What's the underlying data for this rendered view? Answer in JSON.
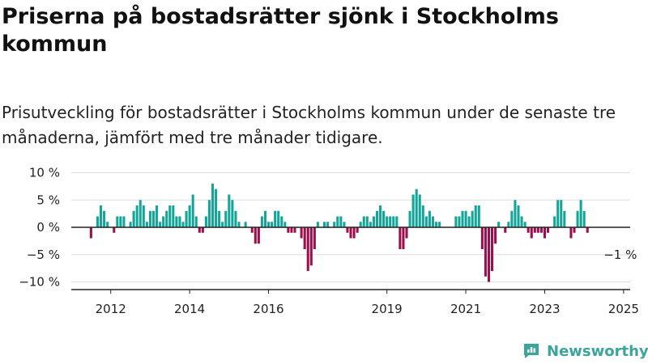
{
  "title": "Priserna på bostadsrätter sjönk i Stockholms kommun",
  "subtitle": "Prisutveckling för bostadsrätter i Stockholms kommun under de senaste tre månaderna, jämfört med tre månader tidigare.",
  "brand": {
    "name": "Newsworthy"
  },
  "colors": {
    "positive": "#13a597",
    "negative": "#9b0f4d",
    "grid": "#dddddd",
    "axis": "#222222"
  },
  "chart_data": {
    "type": "bar",
    "x_start": "2011-01",
    "x_end": "2025-03",
    "unit": "%",
    "ylim": [
      -11,
      11
    ],
    "y_ticks": [
      10,
      5,
      0,
      -5,
      -10
    ],
    "y_tick_labels": [
      "10 %",
      "5 %",
      "0 %",
      "−5 %",
      "−10 %"
    ],
    "x_ticks": [
      "2012",
      "2014",
      "2016",
      "2019",
      "2021",
      "2023",
      "2025"
    ],
    "grid": true,
    "annotation": {
      "text": "−1 %",
      "month": "2024-12",
      "value": -1
    },
    "series": [
      {
        "start_month": "2011-07",
        "values": [
          -2,
          0,
          2,
          4,
          3,
          1,
          0,
          -1,
          2,
          2,
          2,
          0,
          1,
          3,
          4,
          5,
          4,
          1,
          3,
          3,
          4,
          1,
          2,
          3,
          4,
          4,
          2,
          2,
          1,
          3,
          4,
          6,
          2,
          -1,
          -1,
          2,
          5,
          8,
          7,
          3,
          1,
          3,
          6,
          5,
          3,
          1,
          0,
          1,
          0,
          -1,
          -3,
          -3,
          2,
          3,
          1,
          1,
          3,
          3,
          2,
          1,
          -1,
          -1,
          -1,
          0,
          -2,
          -4,
          -8,
          -7,
          -4,
          1,
          0,
          1,
          1,
          0,
          1,
          2,
          2,
          1,
          -1,
          -2,
          -2,
          -1,
          1,
          2,
          2,
          1,
          2,
          3,
          4,
          3,
          2,
          2,
          2,
          2,
          -4,
          -4,
          -2,
          3,
          6,
          7,
          6,
          4,
          2,
          3,
          2,
          1,
          1,
          0,
          0,
          0,
          0,
          2,
          2,
          3,
          3,
          2,
          3,
          4,
          4,
          -4,
          -9,
          -10,
          -8,
          -3,
          1,
          0,
          -1,
          1,
          3,
          5,
          4,
          2,
          1,
          -1,
          -2,
          -1,
          -1,
          -1,
          -2,
          -1,
          0,
          2,
          5,
          5,
          3,
          0,
          -2,
          -1,
          3,
          5,
          3,
          -1
        ]
      }
    ]
  }
}
